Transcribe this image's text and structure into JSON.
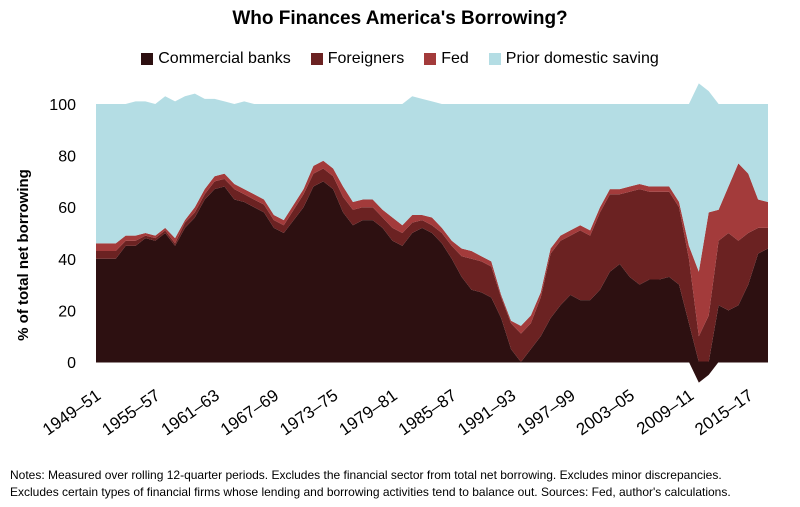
{
  "chart_data": {
    "type": "area",
    "title": "Who Finances America's Borrowing?",
    "ylabel": "% of total net borrowing",
    "xlabel": "",
    "ylim": [
      -10,
      110
    ],
    "y_ticks": [
      0,
      20,
      40,
      60,
      80,
      100
    ],
    "x_range": [
      1949,
      2017
    ],
    "x_ticks": [
      {
        "x": 1949,
        "label": "1949–51"
      },
      {
        "x": 1955,
        "label": "1955–57"
      },
      {
        "x": 1961,
        "label": "1961–63"
      },
      {
        "x": 1967,
        "label": "1967–69"
      },
      {
        "x": 1973,
        "label": "1973–75"
      },
      {
        "x": 1979,
        "label": "1979–81"
      },
      {
        "x": 1985,
        "label": "1985–87"
      },
      {
        "x": 1991,
        "label": "1991–93"
      },
      {
        "x": 1997,
        "label": "1997–99"
      },
      {
        "x": 2003,
        "label": "2003–05"
      },
      {
        "x": 2009,
        "label": "2009–11"
      },
      {
        "x": 2015,
        "label": "2015–17"
      }
    ],
    "legend_position": "top",
    "grid": false,
    "stacked": true,
    "x": [
      1949,
      1950,
      1951,
      1952,
      1953,
      1954,
      1955,
      1956,
      1957,
      1958,
      1959,
      1960,
      1961,
      1962,
      1963,
      1964,
      1965,
      1966,
      1967,
      1968,
      1969,
      1970,
      1971,
      1972,
      1973,
      1974,
      1975,
      1976,
      1977,
      1978,
      1979,
      1980,
      1981,
      1982,
      1983,
      1984,
      1985,
      1986,
      1987,
      1988,
      1989,
      1990,
      1991,
      1992,
      1993,
      1994,
      1995,
      1996,
      1997,
      1998,
      1999,
      2000,
      2001,
      2002,
      2003,
      2004,
      2005,
      2006,
      2007,
      2008,
      2009,
      2010,
      2011,
      2012,
      2013,
      2014,
      2015,
      2016,
      2017
    ],
    "series": [
      {
        "name": "Commercial banks",
        "color": "#2d1011",
        "values": [
          40,
          40,
          40,
          45,
          45,
          48,
          47,
          50,
          45,
          52,
          56,
          63,
          67,
          68,
          63,
          62,
          60,
          58,
          52,
          50,
          55,
          60,
          68,
          70,
          67,
          58,
          53,
          55,
          55,
          52,
          47,
          45,
          50,
          52,
          50,
          46,
          40,
          33,
          28,
          27,
          25,
          17,
          5,
          0,
          5,
          10,
          17,
          22,
          26,
          24,
          24,
          28,
          35,
          38,
          33,
          30,
          32,
          32,
          33,
          30,
          15,
          -8,
          -5,
          22,
          20,
          22,
          30,
          42,
          44
        ]
      },
      {
        "name": "Foreigners",
        "color": "#6b2222",
        "values": [
          3,
          3,
          3,
          2,
          2,
          1,
          1,
          1,
          1,
          2,
          2,
          2,
          3,
          3,
          4,
          3,
          3,
          3,
          3,
          3,
          4,
          5,
          5,
          5,
          5,
          6,
          6,
          5,
          5,
          4,
          5,
          5,
          4,
          3,
          3,
          4,
          5,
          8,
          12,
          12,
          12,
          8,
          10,
          11,
          10,
          15,
          25,
          25,
          23,
          27,
          25,
          30,
          30,
          27,
          33,
          37,
          34,
          34,
          33,
          30,
          25,
          10,
          18,
          25,
          30,
          25,
          20,
          10,
          8
        ]
      },
      {
        "name": "Fed",
        "color": "#a33b3b",
        "values": [
          3,
          3,
          3,
          2,
          2,
          1,
          1,
          1,
          2,
          1,
          2,
          2,
          2,
          2,
          2,
          2,
          2,
          2,
          2,
          2,
          2,
          2,
          3,
          3,
          3,
          4,
          3,
          3,
          3,
          3,
          4,
          3,
          3,
          2,
          3,
          2,
          2,
          3,
          3,
          2,
          2,
          1,
          1,
          3,
          3,
          2,
          2,
          2,
          2,
          2,
          2,
          2,
          2,
          2,
          2,
          2,
          2,
          2,
          2,
          2,
          5,
          25,
          40,
          12,
          18,
          30,
          23,
          11,
          10
        ]
      },
      {
        "name": "Prior domestic saving",
        "color": "#b4dde4",
        "values": [
          54,
          54,
          54,
          51,
          52,
          51,
          51,
          51,
          53,
          48,
          44,
          35,
          30,
          28,
          31,
          34,
          35,
          37,
          43,
          45,
          39,
          33,
          24,
          22,
          25,
          32,
          38,
          37,
          37,
          41,
          44,
          47,
          46,
          45,
          45,
          48,
          53,
          56,
          57,
          59,
          61,
          74,
          84,
          86,
          82,
          73,
          56,
          51,
          49,
          47,
          49,
          40,
          33,
          33,
          32,
          31,
          32,
          32,
          32,
          38,
          55,
          73,
          47,
          41,
          32,
          23,
          27,
          37,
          38
        ]
      }
    ]
  },
  "notes": {
    "line1": "Notes: Measured over rolling 12-quarter periods. Excludes the financial sector from total net borrowing. Excludes minor discrepancies.",
    "line2": "Excludes certain types of financial firms whose lending and borrowing activities tend to balance out. Sources: Fed, author's calculations."
  }
}
